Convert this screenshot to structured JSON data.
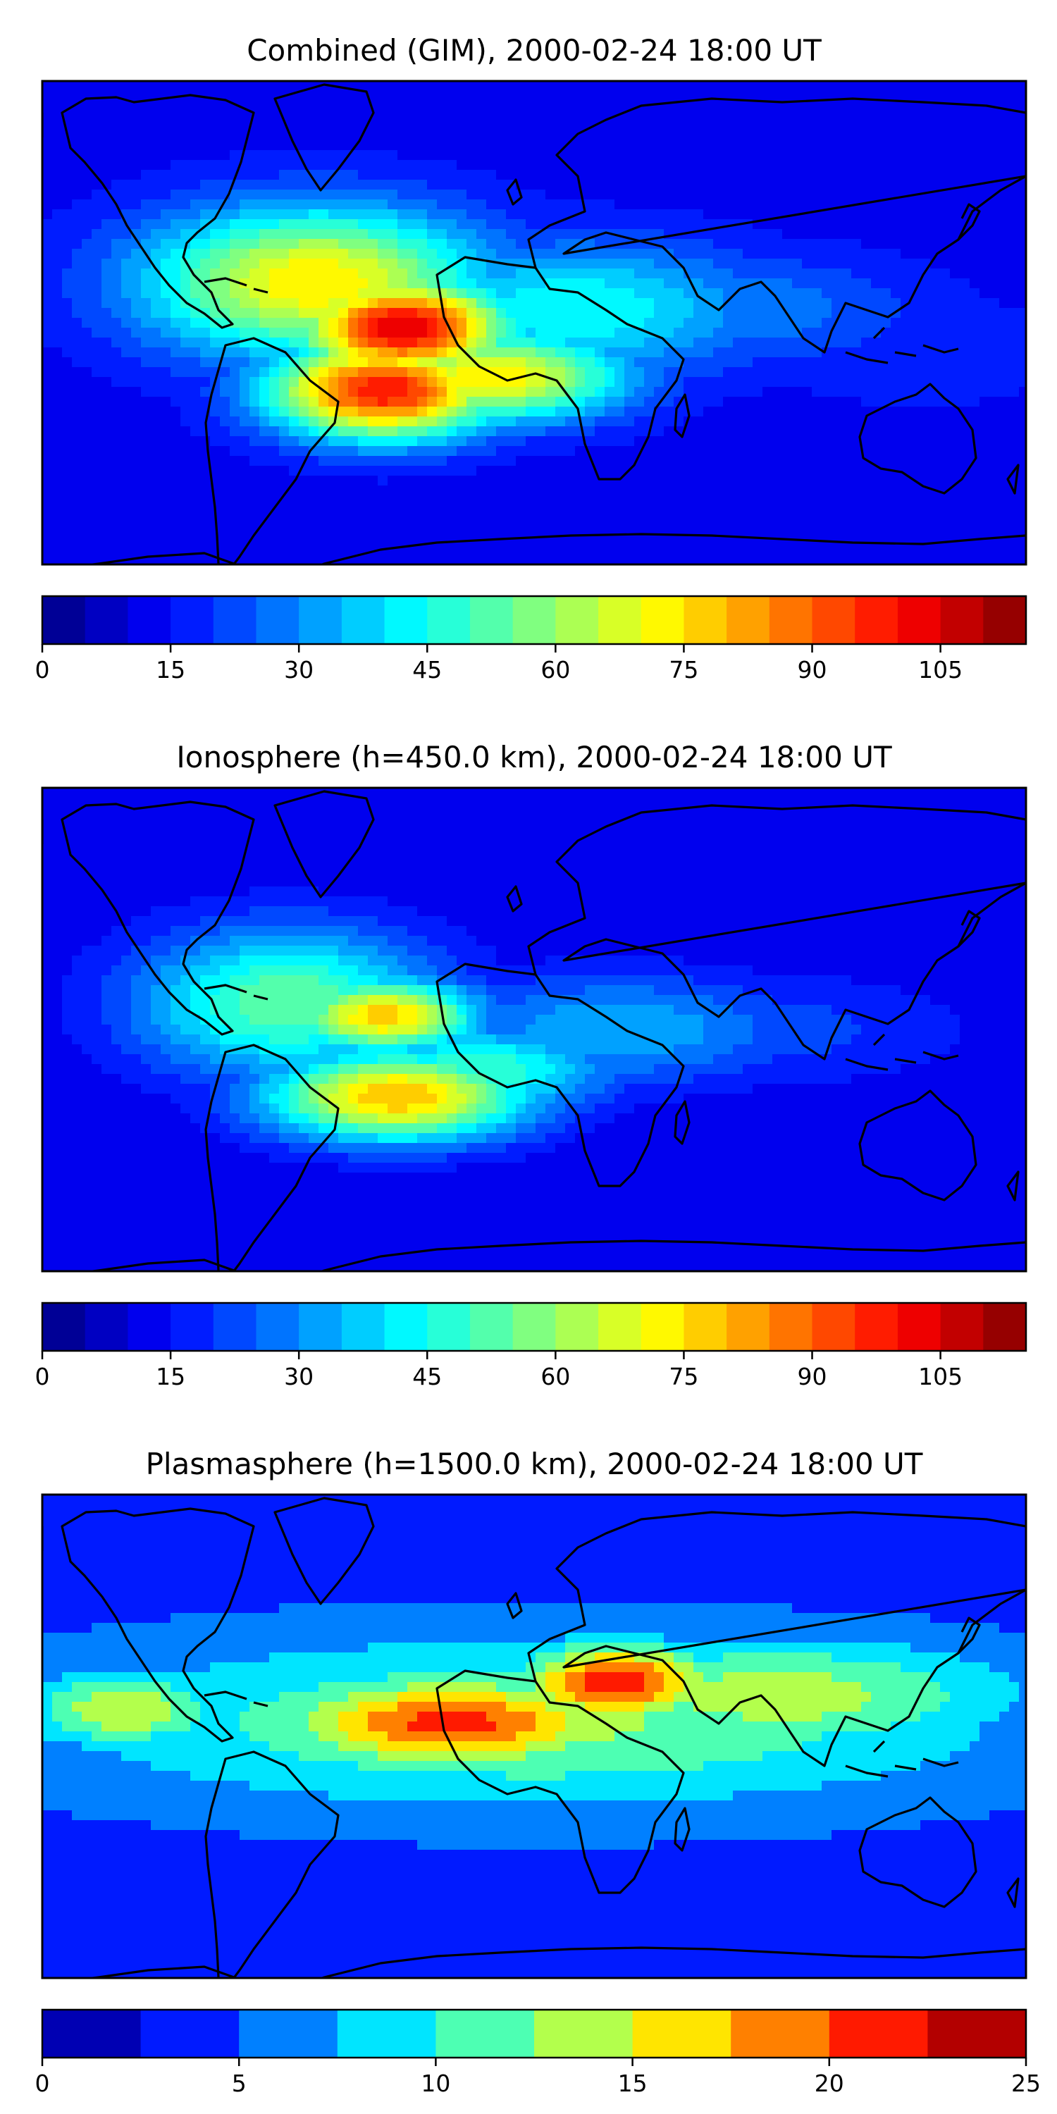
{
  "panels": [
    {
      "title": "Combined (GIM), 2000-02-24 18:00 UT",
      "colormap": "jet",
      "colorbar": {
        "min": 0,
        "max": 115,
        "step": 5,
        "tick_values": [
          0,
          15,
          30,
          45,
          60,
          75,
          90,
          105
        ],
        "tick_labels": [
          "0",
          "15",
          "30",
          "45",
          "60",
          "75",
          "90",
          "105"
        ]
      },
      "features": [
        {
          "lon": -80,
          "lat": 15,
          "value": 75,
          "slon": 45,
          "slat": 20
        },
        {
          "lon": -48,
          "lat": -2,
          "value": 105,
          "slon": 28,
          "slat": 13
        },
        {
          "lon": -55,
          "lat": -25,
          "value": 100,
          "slon": 30,
          "slat": 13
        },
        {
          "lon": -15,
          "lat": -20,
          "value": 75,
          "slon": 35,
          "slat": 12
        },
        {
          "lon": 15,
          "lat": 5,
          "value": 45,
          "slon": 50,
          "slat": 18
        },
        {
          "lon": 70,
          "lat": 5,
          "value": 30,
          "slon": 50,
          "slat": 15
        },
        {
          "lon": 140,
          "lat": -10,
          "value": 20,
          "slon": 40,
          "slat": 15
        }
      ],
      "background": 12
    },
    {
      "title": "Ionosphere  (h=450.0 km), 2000-02-24 18:00 UT",
      "colormap": "jet",
      "colorbar": {
        "min": 0,
        "max": 115,
        "step": 5,
        "tick_values": [
          0,
          15,
          30,
          45,
          60,
          75,
          90,
          105
        ],
        "tick_labels": [
          "0",
          "15",
          "30",
          "45",
          "60",
          "75",
          "90",
          "105"
        ]
      },
      "features": [
        {
          "lon": -90,
          "lat": 10,
          "value": 55,
          "slon": 40,
          "slat": 20
        },
        {
          "lon": -55,
          "lat": 5,
          "value": 78,
          "slon": 25,
          "slat": 10
        },
        {
          "lon": -50,
          "lat": -25,
          "value": 80,
          "slon": 35,
          "slat": 12
        },
        {
          "lon": -20,
          "lat": -15,
          "value": 50,
          "slon": 35,
          "slat": 12
        },
        {
          "lon": 30,
          "lat": 0,
          "value": 35,
          "slon": 50,
          "slat": 15
        },
        {
          "lon": 90,
          "lat": 0,
          "value": 22,
          "slon": 50,
          "slat": 15
        }
      ],
      "background": 10
    },
    {
      "title": "Plasmasphere (h=1500.0 km), 2000-02-24 18:00 UT",
      "colormap": "jet",
      "colorbar": {
        "min": 0,
        "max": 25,
        "step": 2.5,
        "tick_values": [
          0,
          5,
          10,
          15,
          20,
          25
        ],
        "tick_labels": [
          "0",
          "5",
          "10",
          "15",
          "20",
          "25"
        ]
      },
      "features": [
        {
          "lon": -30,
          "lat": 5,
          "value": 21,
          "slon": 45,
          "slat": 12
        },
        {
          "lon": 30,
          "lat": 20,
          "value": 22,
          "slon": 25,
          "slat": 10
        },
        {
          "lon": -150,
          "lat": 10,
          "value": 15,
          "slon": 25,
          "slat": 10
        },
        {
          "lon": 90,
          "lat": 15,
          "value": 14,
          "slon": 60,
          "slat": 15
        },
        {
          "lon": 0,
          "lat": 5,
          "value": 13,
          "slon": 120,
          "slat": 22
        }
      ],
      "background": 4
    }
  ]
}
